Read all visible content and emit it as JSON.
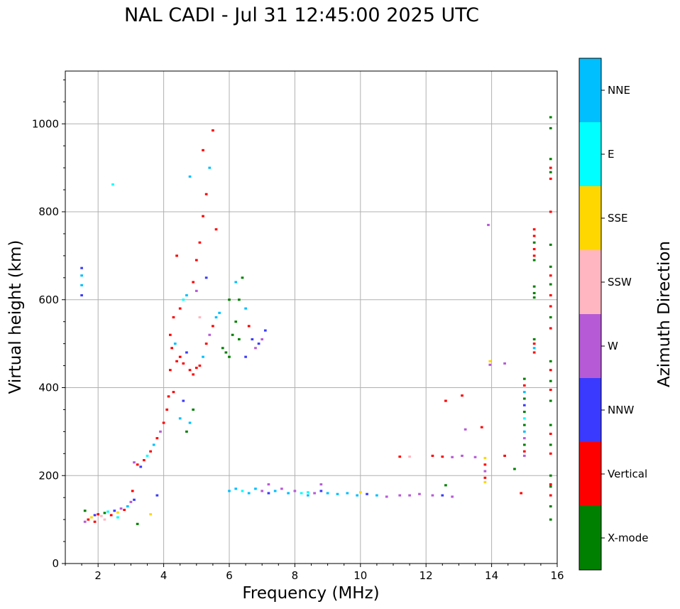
{
  "chart_data": {
    "type": "scatter",
    "title": "NAL CADI - Jul 31 12:45:00 2025 UTC",
    "xlabel": "Frequency (MHz)",
    "ylabel": "Virtual height (km)",
    "xlim": [
      1,
      16
    ],
    "ylim": [
      0,
      1120
    ],
    "xticks": [
      2,
      4,
      6,
      8,
      10,
      12,
      14,
      16
    ],
    "yticks": [
      0,
      200,
      400,
      600,
      800,
      1000
    ],
    "grid": true,
    "colorbar": {
      "label": "Azimuth Direction",
      "categories": [
        {
          "name": "X-mode",
          "color": "#008000"
        },
        {
          "name": "Vertical",
          "color": "#ff0000"
        },
        {
          "name": "NNW",
          "color": "#3a3aff"
        },
        {
          "name": "W",
          "color": "#b65ad6"
        },
        {
          "name": "SSW",
          "color": "#ffb6c1"
        },
        {
          "name": "SSE",
          "color": "#ffd700"
        },
        {
          "name": "E",
          "color": "#00ffff"
        },
        {
          "name": "NNE",
          "color": "#00bfff"
        }
      ]
    },
    "point_width_mhz": 0.08,
    "point_height_km": 5,
    "points": [
      [
        1.5,
        672,
        "NNW"
      ],
      [
        1.5,
        655,
        "NNE"
      ],
      [
        1.5,
        633,
        "NNE"
      ],
      [
        1.5,
        610,
        "NNW"
      ],
      [
        2.45,
        862,
        "E"
      ],
      [
        1.6,
        95,
        "W"
      ],
      [
        1.7,
        100,
        "Vertical"
      ],
      [
        1.8,
        105,
        "SSE"
      ],
      [
        1.9,
        110,
        "NNW"
      ],
      [
        2.0,
        112,
        "Vertical"
      ],
      [
        2.1,
        108,
        "SSW"
      ],
      [
        2.2,
        115,
        "X-mode"
      ],
      [
        2.3,
        118,
        "E"
      ],
      [
        2.4,
        110,
        "Vertical"
      ],
      [
        2.5,
        120,
        "NNW"
      ],
      [
        2.6,
        116,
        "SSE"
      ],
      [
        2.7,
        125,
        "W"
      ],
      [
        2.8,
        122,
        "Vertical"
      ],
      [
        2.9,
        130,
        "NNE"
      ],
      [
        3.0,
        140,
        "W"
      ],
      [
        3.05,
        165,
        "Vertical"
      ],
      [
        3.1,
        145,
        "NNW"
      ],
      [
        1.6,
        120,
        "X-mode"
      ],
      [
        1.9,
        95,
        "Vertical"
      ],
      [
        2.2,
        100,
        "SSW"
      ],
      [
        2.6,
        105,
        "E"
      ],
      [
        3.2,
        90,
        "X-mode"
      ],
      [
        3.6,
        112,
        "SSE"
      ],
      [
        3.8,
        155,
        "NNW"
      ],
      [
        3.1,
        230,
        "W"
      ],
      [
        3.2,
        225,
        "Vertical"
      ],
      [
        3.3,
        220,
        "NNW"
      ],
      [
        3.4,
        235,
        "Vertical"
      ],
      [
        3.5,
        245,
        "E"
      ],
      [
        3.6,
        255,
        "Vertical"
      ],
      [
        3.7,
        270,
        "NNE"
      ],
      [
        3.8,
        285,
        "Vertical"
      ],
      [
        3.9,
        300,
        "W"
      ],
      [
        4.0,
        320,
        "Vertical"
      ],
      [
        4.1,
        350,
        "Vertical"
      ],
      [
        4.15,
        380,
        "Vertical"
      ],
      [
        4.2,
        440,
        "Vertical"
      ],
      [
        4.25,
        490,
        "Vertical"
      ],
      [
        4.35,
        500,
        "NNE"
      ],
      [
        4.4,
        460,
        "Vertical"
      ],
      [
        4.5,
        470,
        "Vertical"
      ],
      [
        4.6,
        455,
        "Vertical"
      ],
      [
        4.7,
        480,
        "NNW"
      ],
      [
        4.8,
        440,
        "Vertical"
      ],
      [
        4.9,
        430,
        "Vertical"
      ],
      [
        5.0,
        445,
        "Vertical"
      ],
      [
        5.1,
        450,
        "Vertical"
      ],
      [
        5.2,
        470,
        "NNE"
      ],
      [
        5.3,
        500,
        "Vertical"
      ],
      [
        5.4,
        520,
        "W"
      ],
      [
        5.5,
        540,
        "Vertical"
      ],
      [
        5.6,
        560,
        "NNE"
      ],
      [
        4.3,
        560,
        "Vertical"
      ],
      [
        4.5,
        580,
        "Vertical"
      ],
      [
        4.7,
        610,
        "NNE"
      ],
      [
        4.9,
        640,
        "Vertical"
      ],
      [
        5.0,
        690,
        "Vertical"
      ],
      [
        5.1,
        730,
        "Vertical"
      ],
      [
        5.2,
        790,
        "Vertical"
      ],
      [
        5.3,
        840,
        "Vertical"
      ],
      [
        5.4,
        900,
        "NNE"
      ],
      [
        5.5,
        985,
        "Vertical"
      ],
      [
        5.2,
        940,
        "Vertical"
      ],
      [
        4.8,
        880,
        "NNE"
      ],
      [
        5.6,
        760,
        "Vertical"
      ],
      [
        5.0,
        620,
        "W"
      ],
      [
        5.3,
        650,
        "NNW"
      ],
      [
        4.4,
        700,
        "Vertical"
      ],
      [
        4.6,
        600,
        "E"
      ],
      [
        5.1,
        560,
        "SSW"
      ],
      [
        4.2,
        520,
        "Vertical"
      ],
      [
        4.9,
        350,
        "X-mode"
      ],
      [
        4.7,
        300,
        "X-mode"
      ],
      [
        4.5,
        330,
        "NNE"
      ],
      [
        4.6,
        370,
        "NNW"
      ],
      [
        4.3,
        390,
        "Vertical"
      ],
      [
        4.8,
        320,
        "NNE"
      ],
      [
        5.8,
        490,
        "X-mode"
      ],
      [
        5.9,
        480,
        "X-mode"
      ],
      [
        6.0,
        470,
        "X-mode"
      ],
      [
        6.1,
        520,
        "X-mode"
      ],
      [
        6.2,
        550,
        "X-mode"
      ],
      [
        6.3,
        600,
        "X-mode"
      ],
      [
        6.4,
        650,
        "X-mode"
      ],
      [
        6.5,
        580,
        "NNE"
      ],
      [
        6.6,
        540,
        "Vertical"
      ],
      [
        6.7,
        510,
        "NNW"
      ],
      [
        6.8,
        490,
        "W"
      ],
      [
        6.9,
        500,
        "NNW"
      ],
      [
        7.0,
        510,
        "W"
      ],
      [
        7.1,
        530,
        "NNW"
      ],
      [
        6.2,
        640,
        "NNE"
      ],
      [
        6.0,
        600,
        "X-mode"
      ],
      [
        6.3,
        510,
        "X-mode"
      ],
      [
        5.7,
        570,
        "NNE"
      ],
      [
        6.5,
        470,
        "NNW"
      ],
      [
        6.0,
        165,
        "NNE"
      ],
      [
        6.2,
        170,
        "NNE"
      ],
      [
        6.4,
        165,
        "E"
      ],
      [
        6.6,
        160,
        "NNE"
      ],
      [
        6.8,
        170,
        "NNE"
      ],
      [
        7.0,
        165,
        "W"
      ],
      [
        7.2,
        160,
        "NNW"
      ],
      [
        7.4,
        165,
        "NNE"
      ],
      [
        7.6,
        170,
        "W"
      ],
      [
        7.8,
        160,
        "NNE"
      ],
      [
        8.0,
        165,
        "W"
      ],
      [
        8.2,
        160,
        "E"
      ],
      [
        8.4,
        155,
        "NNE"
      ],
      [
        8.6,
        160,
        "W"
      ],
      [
        8.8,
        165,
        "NNW"
      ],
      [
        9.0,
        160,
        "NNE"
      ],
      [
        9.3,
        158,
        "NNE"
      ],
      [
        9.6,
        160,
        "NNE"
      ],
      [
        9.9,
        155,
        "NNE"
      ],
      [
        10.2,
        158,
        "NNW"
      ],
      [
        10.5,
        155,
        "NNE"
      ],
      [
        10.8,
        152,
        "W"
      ],
      [
        11.2,
        155,
        "W"
      ],
      [
        11.5,
        155,
        "W"
      ],
      [
        11.8,
        158,
        "W"
      ],
      [
        12.2,
        155,
        "W"
      ],
      [
        12.5,
        155,
        "NNW"
      ],
      [
        12.8,
        152,
        "W"
      ],
      [
        7.2,
        180,
        "W"
      ],
      [
        8.8,
        180,
        "W"
      ],
      [
        10.0,
        162,
        "SSE"
      ],
      [
        8.4,
        162,
        "E"
      ],
      [
        11.2,
        243,
        "Vertical"
      ],
      [
        11.5,
        243,
        "SSW"
      ],
      [
        12.2,
        245,
        "Vertical"
      ],
      [
        12.5,
        243,
        "Vertical"
      ],
      [
        12.8,
        242,
        "W"
      ],
      [
        13.1,
        245,
        "W"
      ],
      [
        13.5,
        242,
        "W"
      ],
      [
        12.6,
        370,
        "Vertical"
      ],
      [
        13.1,
        382,
        "Vertical"
      ],
      [
        13.2,
        305,
        "W"
      ],
      [
        13.7,
        310,
        "Vertical"
      ],
      [
        14.4,
        245,
        "Vertical"
      ],
      [
        14.7,
        215,
        "X-mode"
      ],
      [
        14.9,
        160,
        "Vertical"
      ],
      [
        12.6,
        178,
        "X-mode"
      ],
      [
        13.8,
        240,
        "SSE"
      ],
      [
        13.8,
        225,
        "Vertical"
      ],
      [
        13.8,
        210,
        "W"
      ],
      [
        13.8,
        195,
        "Vertical"
      ],
      [
        13.8,
        185,
        "SSE"
      ],
      [
        13.95,
        460,
        "SSE"
      ],
      [
        13.95,
        452,
        "W"
      ],
      [
        14.4,
        455,
        "W"
      ],
      [
        13.9,
        770,
        "W"
      ],
      [
        15.0,
        420,
        "X-mode"
      ],
      [
        15.0,
        405,
        "Vertical"
      ],
      [
        15.0,
        390,
        "NNE"
      ],
      [
        15.0,
        375,
        "X-mode"
      ],
      [
        15.0,
        360,
        "NNW"
      ],
      [
        15.0,
        345,
        "X-mode"
      ],
      [
        15.0,
        330,
        "E"
      ],
      [
        15.0,
        315,
        "X-mode"
      ],
      [
        15.0,
        300,
        "NNE"
      ],
      [
        15.0,
        285,
        "W"
      ],
      [
        15.0,
        270,
        "X-mode"
      ],
      [
        15.0,
        255,
        "Vertical"
      ],
      [
        15.0,
        245,
        "W"
      ],
      [
        15.3,
        760,
        "Vertical"
      ],
      [
        15.3,
        745,
        "Vertical"
      ],
      [
        15.3,
        730,
        "X-mode"
      ],
      [
        15.3,
        715,
        "Vertical"
      ],
      [
        15.3,
        700,
        "Vertical"
      ],
      [
        15.3,
        690,
        "X-mode"
      ],
      [
        15.3,
        630,
        "X-mode"
      ],
      [
        15.3,
        615,
        "X-mode"
      ],
      [
        15.3,
        605,
        "X-mode"
      ],
      [
        15.3,
        510,
        "X-mode"
      ],
      [
        15.3,
        500,
        "Vertical"
      ],
      [
        15.3,
        490,
        "NNE"
      ],
      [
        15.3,
        480,
        "Vertical"
      ],
      [
        15.8,
        1015,
        "X-mode"
      ],
      [
        15.8,
        990,
        "X-mode"
      ],
      [
        15.8,
        920,
        "X-mode"
      ],
      [
        15.8,
        900,
        "Vertical"
      ],
      [
        15.8,
        890,
        "X-mode"
      ],
      [
        15.8,
        875,
        "Vertical"
      ],
      [
        15.8,
        800,
        "Vertical"
      ],
      [
        15.8,
        725,
        "X-mode"
      ],
      [
        15.8,
        675,
        "X-mode"
      ],
      [
        15.8,
        655,
        "Vertical"
      ],
      [
        15.8,
        635,
        "X-mode"
      ],
      [
        15.8,
        610,
        "Vertical"
      ],
      [
        15.8,
        585,
        "Vertical"
      ],
      [
        15.8,
        560,
        "X-mode"
      ],
      [
        15.8,
        535,
        "Vertical"
      ],
      [
        15.8,
        460,
        "X-mode"
      ],
      [
        15.8,
        440,
        "Vertical"
      ],
      [
        15.8,
        415,
        "X-mode"
      ],
      [
        15.8,
        395,
        "Vertical"
      ],
      [
        15.8,
        370,
        "X-mode"
      ],
      [
        15.8,
        315,
        "X-mode"
      ],
      [
        15.8,
        295,
        "Vertical"
      ],
      [
        15.8,
        270,
        "X-mode"
      ],
      [
        15.8,
        250,
        "Vertical"
      ],
      [
        15.8,
        200,
        "X-mode"
      ],
      [
        15.8,
        180,
        "Vertical"
      ],
      [
        15.8,
        175,
        "X-mode"
      ],
      [
        15.8,
        155,
        "Vertical"
      ],
      [
        15.8,
        130,
        "X-mode"
      ],
      [
        15.8,
        100,
        "X-mode"
      ]
    ]
  }
}
